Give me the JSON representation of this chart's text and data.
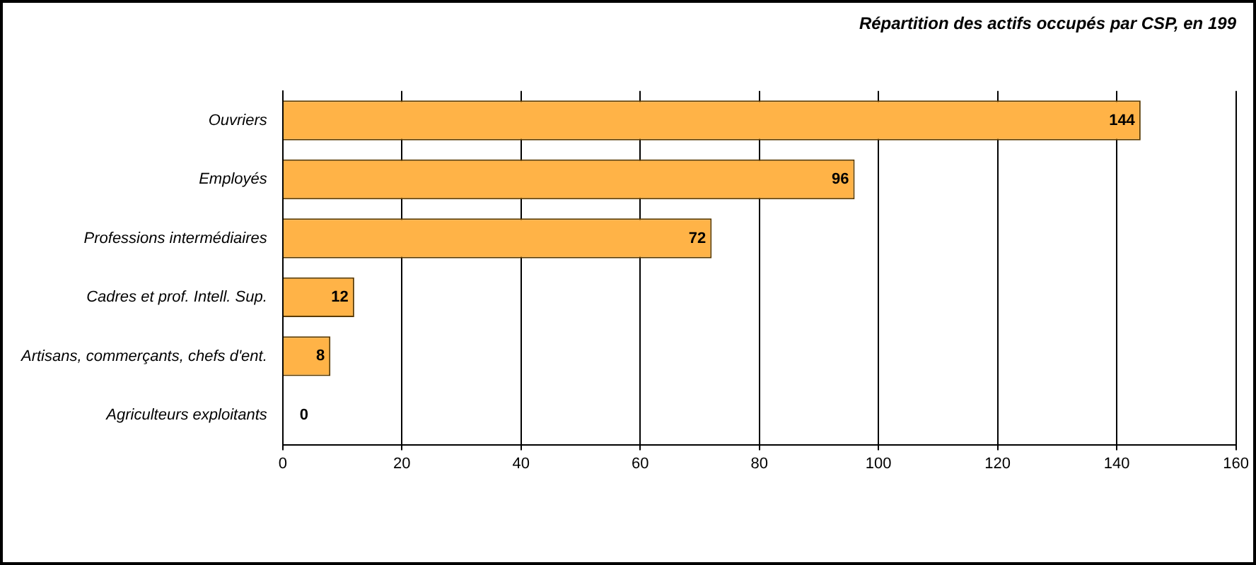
{
  "chart_data": {
    "type": "bar",
    "orientation": "horizontal",
    "title": "Répartition des actifs occupés par CSP, en 199",
    "categories": [
      "Ouvriers",
      "Employés",
      "Professions intermédiaires",
      "Cadres et prof. Intell. Sup.",
      "Artisans, commerçants, chefs d'ent.",
      "Agriculteurs exploitants"
    ],
    "values": [
      144,
      96,
      72,
      12,
      8,
      0
    ],
    "color": "#ffb347",
    "xlim": [
      0,
      160
    ],
    "xticks": [
      0,
      20,
      40,
      60,
      80,
      100,
      120,
      140,
      160
    ],
    "grid": "x",
    "data_labels": true,
    "legend": false
  }
}
